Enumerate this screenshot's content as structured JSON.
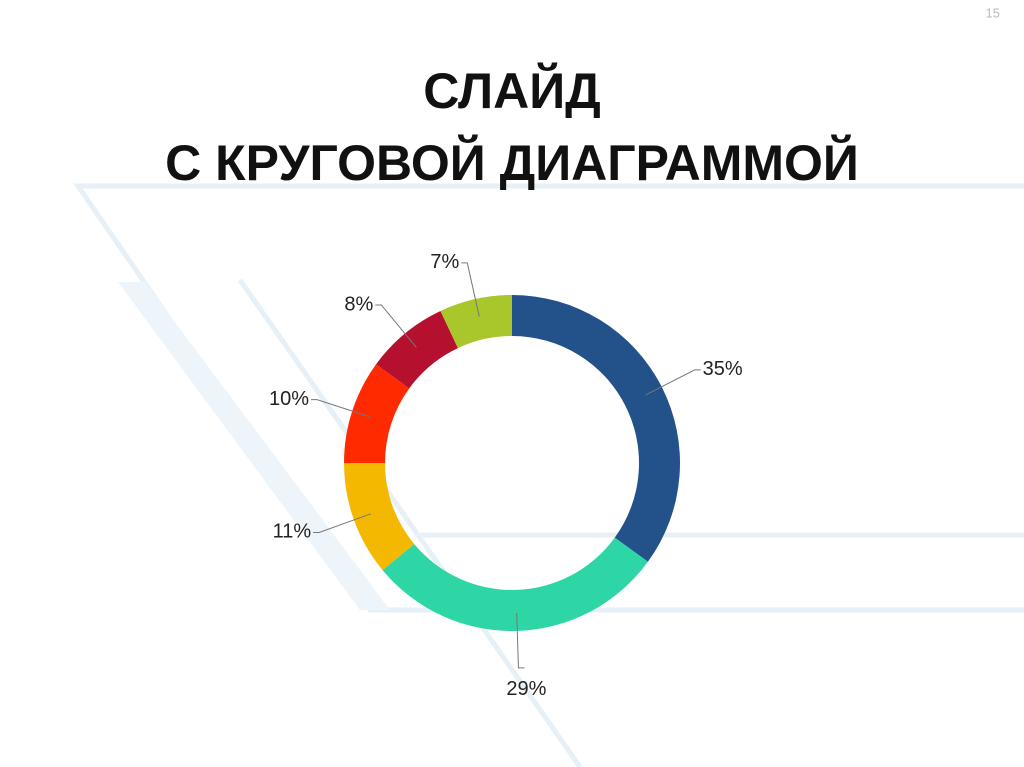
{
  "page_number": "15",
  "chart_data": {
    "type": "donut",
    "title": [
      "СЛАЙД",
      "С КРУГОВОЙ ДИАГРАММОЙ"
    ],
    "values": [
      35,
      29,
      11,
      10,
      8,
      7
    ],
    "value_labels": [
      "35%",
      "29%",
      "11%",
      "10%",
      "8%",
      "7%"
    ],
    "colors": [
      "#23518a",
      "#2ed6a5",
      "#f5b800",
      "#ff2a00",
      "#b5102e",
      "#a9c62a"
    ]
  }
}
